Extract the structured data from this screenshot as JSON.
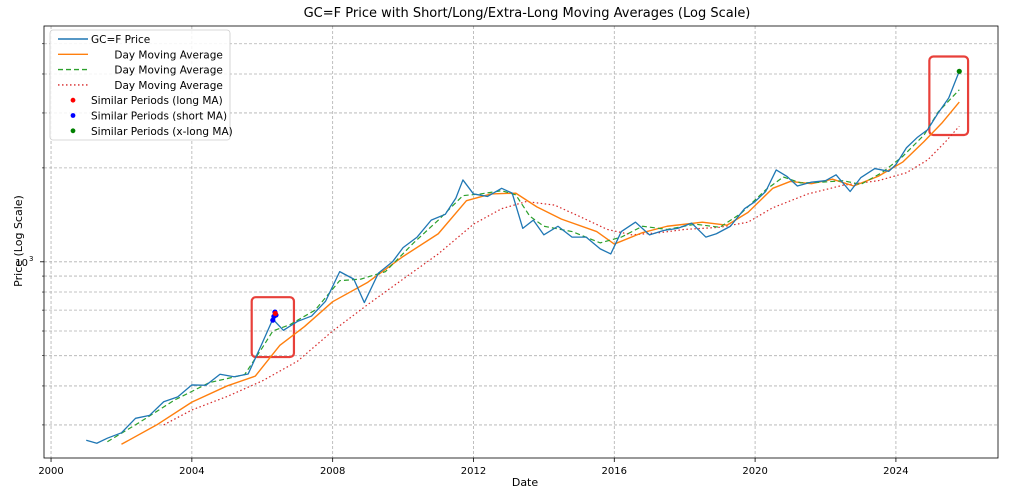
{
  "chart_data": {
    "type": "line",
    "title": "GC=F Price with Short/Long/Extra-Long Moving Averages (Log Scale)",
    "xlabel": "Date",
    "ylabel": "Price (Log Scale)",
    "y_scale": "log",
    "xlim": [
      1999.8,
      2026.9
    ],
    "ylim": [
      235,
      5700
    ],
    "x_ticks": [
      2000,
      2004,
      2008,
      2012,
      2016,
      2020,
      2024
    ],
    "x_tick_labels": [
      "2000",
      "2004",
      "2008",
      "2012",
      "2016",
      "2020",
      "2024"
    ],
    "y_major_ticks": [
      1000
    ],
    "y_major_tick_label": "10",
    "y_major_tick_exponent": "3",
    "y_minor_ticks": [
      300,
      400,
      500,
      600,
      700,
      800,
      900,
      2000,
      3000,
      4000,
      5000
    ],
    "grid": true,
    "legend_position": "top-left",
    "colors": {
      "price": "#1f77b4",
      "short_ma": "#2ca02c",
      "long_ma": "#ff7f0e",
      "xlong_ma": "#d62728",
      "similar_long": "#ff0000",
      "similar_short": "#0000ff",
      "similar_xlong": "#008000",
      "highlight_box": "#e8403a"
    },
    "legend": [
      {
        "label": "GC=F Price",
        "style": "solid",
        "color": "#1f77b4"
      },
      {
        "label": "       Day Moving Average",
        "style": "solid",
        "color": "#ff7f0e"
      },
      {
        "label": "       Day Moving Average",
        "style": "dashed",
        "color": "#2ca02c"
      },
      {
        "label": "       Day Moving Average",
        "style": "dotted",
        "color": "#d62728"
      },
      {
        "label": "Similar Periods (long MA)",
        "style": "marker",
        "color": "#ff0000"
      },
      {
        "label": "Similar Periods (short MA)",
        "style": "marker",
        "color": "#0000ff"
      },
      {
        "label": "Similar Periods (x-long MA)",
        "style": "marker",
        "color": "#008000"
      }
    ],
    "series": [
      {
        "key": "price",
        "x": [
          2001.0,
          2001.3,
          2001.6,
          2002.0,
          2002.4,
          2002.8,
          2003.2,
          2003.6,
          2004.0,
          2004.4,
          2004.8,
          2005.2,
          2005.6,
          2006.0,
          2006.3,
          2006.6,
          2007.0,
          2007.4,
          2007.8,
          2008.2,
          2008.6,
          2008.9,
          2009.3,
          2009.7,
          2010.0,
          2010.4,
          2010.8,
          2011.2,
          2011.5,
          2011.7,
          2012.0,
          2012.4,
          2012.8,
          2013.1,
          2013.4,
          2013.7,
          2014.0,
          2014.4,
          2014.8,
          2015.2,
          2015.6,
          2015.9,
          2016.2,
          2016.6,
          2017.0,
          2017.4,
          2017.8,
          2018.2,
          2018.6,
          2018.9,
          2019.3,
          2019.7,
          2020.0,
          2020.3,
          2020.6,
          2020.9,
          2021.2,
          2021.6,
          2022.0,
          2022.3,
          2022.7,
          2023.0,
          2023.4,
          2023.8,
          2024.0,
          2024.3,
          2024.6,
          2024.9,
          2025.2,
          2025.5,
          2025.8
        ],
        "y": [
          268,
          262,
          272,
          283,
          315,
          322,
          356,
          369,
          403,
          402,
          436,
          428,
          437,
          549,
          655,
          603,
          644,
          670,
          748,
          930,
          880,
          740,
          920,
          1000,
          1110,
          1200,
          1360,
          1420,
          1600,
          1830,
          1650,
          1620,
          1720,
          1660,
          1280,
          1360,
          1220,
          1300,
          1200,
          1200,
          1100,
          1060,
          1250,
          1340,
          1220,
          1260,
          1280,
          1330,
          1200,
          1230,
          1300,
          1480,
          1560,
          1680,
          1970,
          1880,
          1750,
          1800,
          1820,
          1900,
          1680,
          1860,
          1990,
          1950,
          2050,
          2320,
          2500,
          2650,
          3000,
          3350,
          4080
        ]
      },
      {
        "key": "long_ma",
        "x": [
          2002.0,
          2003.0,
          2004.0,
          2005.0,
          2005.8,
          2006.5,
          2007.2,
          2008.0,
          2009.0,
          2010.0,
          2011.0,
          2011.8,
          2012.5,
          2013.2,
          2013.8,
          2014.5,
          2015.5,
          2016.0,
          2016.8,
          2017.5,
          2018.5,
          2019.2,
          2019.8,
          2020.5,
          2021.0,
          2021.6,
          2022.2,
          2022.8,
          2023.5,
          2024.2,
          2024.8,
          2025.3,
          2025.8
        ],
        "y": [
          260,
          300,
          355,
          400,
          430,
          540,
          620,
          745,
          860,
          1040,
          1230,
          1570,
          1650,
          1660,
          1500,
          1370,
          1250,
          1140,
          1240,
          1300,
          1340,
          1310,
          1440,
          1720,
          1810,
          1780,
          1840,
          1750,
          1880,
          2090,
          2430,
          2780,
          3250
        ]
      },
      {
        "key": "short_ma",
        "x": [
          2001.6,
          2002.5,
          2003.5,
          2004.5,
          2005.5,
          2006.0,
          2006.3,
          2006.8,
          2007.5,
          2008.2,
          2008.8,
          2009.5,
          2010.3,
          2011.0,
          2011.7,
          2012.2,
          2012.8,
          2013.2,
          2013.6,
          2014.0,
          2014.8,
          2015.6,
          2016.2,
          2016.8,
          2017.5,
          2018.3,
          2019.0,
          2019.6,
          2020.3,
          2020.8,
          2021.3,
          2021.9,
          2022.5,
          2023.0,
          2023.6,
          2024.2,
          2024.8,
          2025.2,
          2025.8
        ],
        "y": [
          265,
          305,
          360,
          410,
          435,
          530,
          600,
          630,
          700,
          870,
          880,
          930,
          1150,
          1360,
          1630,
          1650,
          1690,
          1640,
          1400,
          1300,
          1250,
          1150,
          1200,
          1300,
          1270,
          1320,
          1290,
          1430,
          1700,
          1870,
          1790,
          1800,
          1820,
          1770,
          1930,
          2180,
          2550,
          3020,
          3560
        ]
      },
      {
        "key": "xlong_ma",
        "x": [
          2003.2,
          2004.0,
          2005.0,
          2006.0,
          2007.0,
          2008.0,
          2009.0,
          2010.0,
          2011.0,
          2012.0,
          2012.8,
          2013.5,
          2014.3,
          2015.0,
          2015.8,
          2016.5,
          2017.3,
          2018.0,
          2019.0,
          2019.8,
          2020.5,
          2021.5,
          2022.5,
          2023.5,
          2024.3,
          2024.9,
          2025.4,
          2025.8
        ],
        "y": [
          300,
          335,
          370,
          415,
          480,
          600,
          730,
          880,
          1060,
          1320,
          1480,
          1560,
          1520,
          1400,
          1270,
          1220,
          1240,
          1270,
          1290,
          1340,
          1490,
          1650,
          1760,
          1820,
          1930,
          2120,
          2420,
          2720
        ]
      }
    ],
    "similar_periods": {
      "short_ma": {
        "x": [
          2006.3,
          2006.33,
          2006.36,
          2006.39
        ],
        "y": [
          650,
          668,
          690,
          675
        ]
      },
      "long_ma": {
        "x": [
          2006.37
        ],
        "y": [
          683
        ]
      },
      "xlong_ma": {
        "x": [
          2025.8
        ],
        "y": [
          4080
        ]
      }
    },
    "highlight_regions": [
      {
        "x0": 2005.7,
        "x1": 2006.9,
        "y0": 495,
        "y1": 770
      },
      {
        "x0": 2024.95,
        "x1": 2026.05,
        "y0": 2550,
        "y1": 4550
      }
    ]
  }
}
